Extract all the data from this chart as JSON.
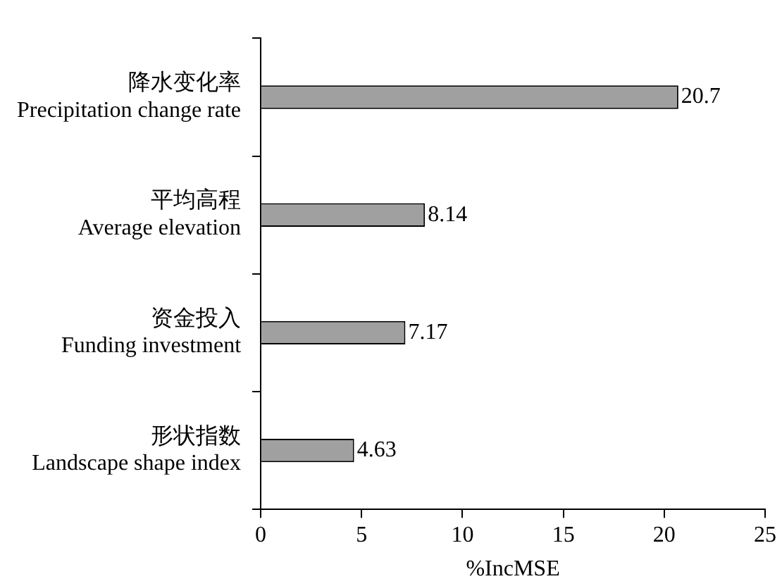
{
  "chart_data": {
    "type": "bar",
    "orientation": "horizontal",
    "xlabel": "%IncMSE",
    "categories": [
      "降水变化率\nPrecipitation change rate",
      "平均高程\nAverage elevation",
      "资金投入\nFunding investment",
      "形状指数\nLandscape shape index"
    ],
    "values": [
      20.7,
      8.14,
      7.17,
      4.63
    ],
    "color": "#a0a0a0",
    "xlim": [
      0,
      25
    ],
    "xticks": [
      0,
      5,
      10,
      15,
      20,
      25
    ],
    "grid": false,
    "legend": false,
    "data_labels": true
  }
}
